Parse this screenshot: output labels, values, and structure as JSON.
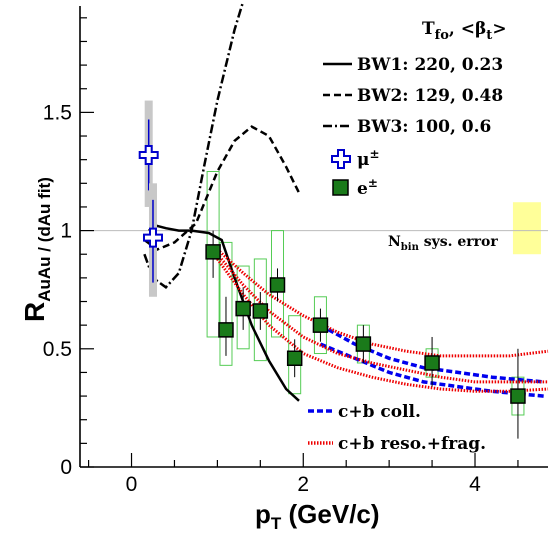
{
  "chart_data": {
    "type": "scatter",
    "xlabel": "p",
    "xlabel_sub": "T",
    "xlabel_unit": " (GeV/c)",
    "ylabel": "R",
    "ylabel_sub": "AuAu / (dAu fit)",
    "xlim": [
      -0.6,
      4.85
    ],
    "ylim": [
      0,
      1.95
    ],
    "x_ticks": [
      0,
      2,
      4
    ],
    "y_ticks": [
      0,
      0.5,
      1,
      1.5
    ],
    "y_tick_labels": [
      "0",
      "0.5",
      "1",
      "1.5"
    ],
    "reference_line": 1,
    "legend_header": {
      "main": "T",
      "sub1": "fo",
      "mid": ",  <β",
      "sub2": "t",
      "end": ">"
    },
    "legend": [
      {
        "key": "bw1",
        "label": "BW1: 220, 0.23"
      },
      {
        "key": "bw2",
        "label": "BW2: 129, 0.48"
      },
      {
        "key": "bw3",
        "label": "BW3: 100, 0.6"
      },
      {
        "key": "mu",
        "label": "μ",
        "sup": "±"
      },
      {
        "key": "e",
        "label": "e",
        "sup": "±"
      }
    ],
    "legend2": [
      {
        "key": "cb_coll",
        "label": "c+b coll."
      },
      {
        "key": "cb_reso",
        "label": "c+b reso.+frag."
      }
    ],
    "sys_error": {
      "label_main": "N",
      "label_sub": "bin",
      "label_rest": " sys. error",
      "x": 4.5,
      "y_low": 0.9,
      "y_high": 1.12,
      "color": "#ffff99"
    },
    "series": [
      {
        "key": "bw1",
        "style": "solid",
        "color": "#000000",
        "x": [
          0.2,
          0.3,
          0.4,
          0.55,
          0.7,
          0.9,
          1.05,
          1.2,
          1.4,
          1.6,
          1.8,
          1.95
        ],
        "y": [
          1.0,
          1.02,
          1.01,
          1.0,
          1.0,
          0.99,
          0.96,
          0.8,
          0.6,
          0.45,
          0.33,
          0.28
        ]
      },
      {
        "key": "bw2",
        "style": "dashed",
        "color": "#000000",
        "x": [
          0.15,
          0.3,
          0.5,
          0.75,
          1.0,
          1.2,
          1.4,
          1.6,
          1.8,
          1.95
        ],
        "y": [
          0.96,
          0.92,
          0.95,
          1.03,
          1.25,
          1.38,
          1.44,
          1.4,
          1.27,
          1.16
        ]
      },
      {
        "key": "bw3",
        "style": "dashdot",
        "color": "#000000",
        "x": [
          0.15,
          0.25,
          0.4,
          0.55,
          0.7,
          0.85,
          1.0,
          1.1,
          1.2,
          1.3
        ],
        "y": [
          0.9,
          0.8,
          0.76,
          0.82,
          1.0,
          1.28,
          1.55,
          1.7,
          1.85,
          1.97
        ]
      },
      {
        "key": "cb_coll_upper",
        "style": "dashed-thick",
        "color": "#0000ee",
        "x": [
          2.2,
          2.6,
          3.0,
          3.4,
          3.8,
          4.2,
          4.8
        ],
        "y": [
          0.6,
          0.52,
          0.46,
          0.42,
          0.4,
          0.38,
          0.36
        ]
      },
      {
        "key": "cb_coll_lower",
        "style": "dashed-thick",
        "color": "#0000ee",
        "x": [
          2.2,
          2.6,
          3.0,
          3.4,
          3.8,
          4.2,
          4.8
        ],
        "y": [
          0.52,
          0.46,
          0.4,
          0.36,
          0.34,
          0.32,
          0.3
        ]
      },
      {
        "key": "cb_reso_upper",
        "style": "dotted-thick",
        "color": "#ee0000",
        "x": [
          1.0,
          1.3,
          1.6,
          2.0,
          2.4,
          2.8,
          3.2,
          3.6,
          4.0,
          4.4,
          4.85
        ],
        "y": [
          0.92,
          0.82,
          0.73,
          0.64,
          0.57,
          0.52,
          0.49,
          0.47,
          0.47,
          0.47,
          0.49
        ]
      },
      {
        "key": "cb_reso_mid",
        "style": "dotted-thick",
        "color": "#ee0000",
        "x": [
          1.0,
          1.3,
          1.6,
          2.0,
          2.4,
          2.8,
          3.2,
          3.6,
          4.0,
          4.4,
          4.85
        ],
        "y": [
          0.9,
          0.77,
          0.66,
          0.55,
          0.48,
          0.44,
          0.41,
          0.38,
          0.36,
          0.36,
          0.36
        ]
      },
      {
        "key": "cb_reso_lower",
        "style": "dotted-thick",
        "color": "#ee0000",
        "x": [
          1.0,
          1.3,
          1.6,
          2.0,
          2.4,
          2.8,
          3.2,
          3.6,
          4.0,
          4.4,
          4.85
        ],
        "y": [
          0.88,
          0.73,
          0.6,
          0.48,
          0.42,
          0.38,
          0.35,
          0.33,
          0.32,
          0.32,
          0.33
        ]
      }
    ],
    "mu_points": [
      {
        "x": 0.2,
        "y": 1.32,
        "stat_lo": 1.17,
        "stat_hi": 1.47,
        "sys_lo": 1.1,
        "sys_hi": 1.55
      },
      {
        "x": 0.25,
        "y": 0.97,
        "stat_lo": 0.78,
        "stat_hi": 1.13,
        "sys_lo": 0.72,
        "sys_hi": 1.2
      }
    ],
    "e_points": [
      {
        "x": 0.95,
        "y": 0.91,
        "err_lo": 0.8,
        "err_hi": 1.0,
        "box_lo": 0.55,
        "box_hi": 1.25
      },
      {
        "x": 1.1,
        "y": 0.58,
        "err_lo": 0.47,
        "err_hi": 0.72,
        "box_lo": 0.43,
        "box_hi": 0.95
      },
      {
        "x": 1.3,
        "y": 0.67,
        "err_lo": 0.58,
        "err_hi": 0.76,
        "box_lo": 0.5,
        "box_hi": 0.85
      },
      {
        "x": 1.5,
        "y": 0.66,
        "err_lo": 0.58,
        "err_hi": 0.74,
        "box_lo": 0.45,
        "box_hi": 0.88
      },
      {
        "x": 1.7,
        "y": 0.77,
        "err_lo": 0.7,
        "err_hi": 0.84,
        "box_lo": 0.55,
        "box_hi": 1.0
      },
      {
        "x": 1.9,
        "y": 0.46,
        "err_lo": 0.38,
        "err_hi": 0.54,
        "box_lo": 0.31,
        "box_hi": 0.64
      },
      {
        "x": 2.2,
        "y": 0.6,
        "err_lo": 0.53,
        "err_hi": 0.67,
        "box_lo": 0.48,
        "box_hi": 0.72
      },
      {
        "x": 2.7,
        "y": 0.52,
        "err_lo": 0.44,
        "err_hi": 0.6,
        "box_lo": 0.44,
        "box_hi": 0.6
      },
      {
        "x": 3.5,
        "y": 0.44,
        "err_lo": 0.34,
        "err_hi": 0.55,
        "box_lo": 0.38,
        "box_hi": 0.5
      },
      {
        "x": 4.5,
        "y": 0.3,
        "err_lo": 0.12,
        "err_hi": 0.5,
        "box_lo": 0.22,
        "box_hi": 0.38
      }
    ]
  }
}
